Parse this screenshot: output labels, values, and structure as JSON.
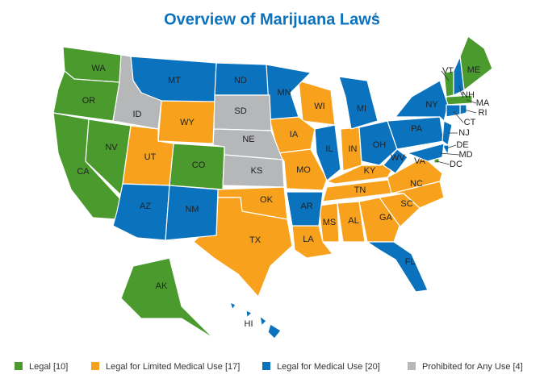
{
  "header": {
    "title": "Overview of Marijuana Laws",
    "footnote": "4"
  },
  "legend": {
    "items": [
      {
        "label": "Legal [10]",
        "color": "#4a9a2e",
        "states": [
          "WA",
          "OR",
          "CA",
          "NV",
          "CO",
          "AK",
          "ME",
          "VT",
          "MA",
          "DC"
        ]
      },
      {
        "label": "Legal for Limited Medical Use [17]",
        "color": "#f7a11d",
        "states": [
          "WY",
          "UT",
          "WI",
          "IA",
          "MO",
          "OK",
          "TX",
          "IN",
          "KY",
          "TN",
          "VA",
          "NC",
          "SC",
          "GA",
          "AL",
          "MS",
          "LA"
        ]
      },
      {
        "label": "Legal for Medical Use [20]",
        "color": "#0b72bd",
        "states": [
          "MT",
          "ND",
          "MN",
          "AZ",
          "NM",
          "AR",
          "IL",
          "MI",
          "OH",
          "WV",
          "PA",
          "NY",
          "FL",
          "HI",
          "NH",
          "RI",
          "CT",
          "NJ",
          "DE",
          "MD"
        ]
      },
      {
        "label": "Prohibited for Any Use [4]",
        "color": "#b5b7b9",
        "states": [
          "ID",
          "SD",
          "NE",
          "KS"
        ]
      }
    ]
  }
}
